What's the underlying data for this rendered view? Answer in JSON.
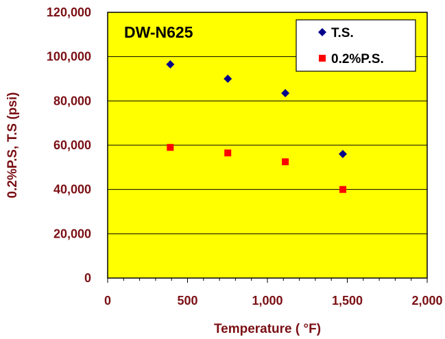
{
  "chart_data": {
    "type": "scatter",
    "title": "DW-N625",
    "xlabel": "Temperature ( °F)",
    "ylabel": "0.2%P.S, T.S (psi)",
    "xlim": [
      0,
      2000
    ],
    "ylim": [
      0,
      120000
    ],
    "x_ticks": [
      "0",
      "500",
      "1,000",
      "1,500",
      "2,000"
    ],
    "y_ticks": [
      "0",
      "20,000",
      "40,000",
      "60,000",
      "80,000",
      "100,000",
      "120,000"
    ],
    "grid": "horizontal",
    "legend_position": "top-right",
    "series": [
      {
        "name": "T.S.",
        "marker": "diamond",
        "color": "#00008b",
        "x": [
          392,
          752,
          1112,
          1472
        ],
        "y": [
          96500,
          90000,
          83500,
          56000
        ]
      },
      {
        "name": "0.2%P.S.",
        "marker": "square",
        "color": "#ff0000",
        "x": [
          392,
          752,
          1112,
          1472
        ],
        "y": [
          59000,
          56500,
          52500,
          40000
        ]
      }
    ],
    "plot_background": "#ffff00",
    "text_color": "#7a0f14"
  }
}
